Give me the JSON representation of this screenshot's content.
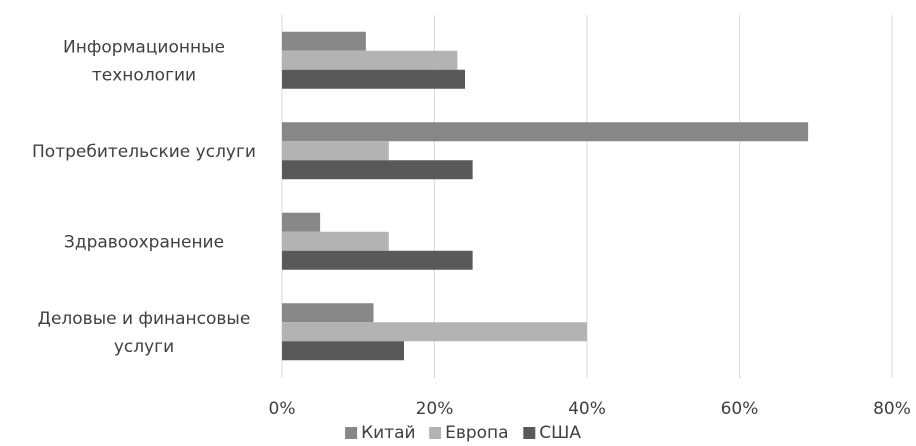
{
  "chart_data": {
    "type": "bar",
    "orientation": "horizontal",
    "categories": [
      [
        "Информационные",
        "технологии"
      ],
      [
        "Потребительские услуги"
      ],
      [
        "Здравоохранение"
      ],
      [
        "Деловые и финансовые",
        "услуги"
      ]
    ],
    "series": [
      {
        "name": "Китай",
        "color": "#878787",
        "values": [
          11,
          69,
          5,
          12
        ]
      },
      {
        "name": "Европа",
        "color": "#b3b3b3",
        "values": [
          23,
          14,
          14,
          40
        ]
      },
      {
        "name": "США",
        "color": "#595959",
        "values": [
          24,
          25,
          25,
          16
        ]
      }
    ],
    "xlim": [
      0,
      80
    ],
    "xticks": [
      "0%",
      "20%",
      "40%",
      "60%",
      "80%"
    ],
    "grid": true,
    "legend_position": "bottom",
    "gridline_color": "#d9d9d9"
  }
}
